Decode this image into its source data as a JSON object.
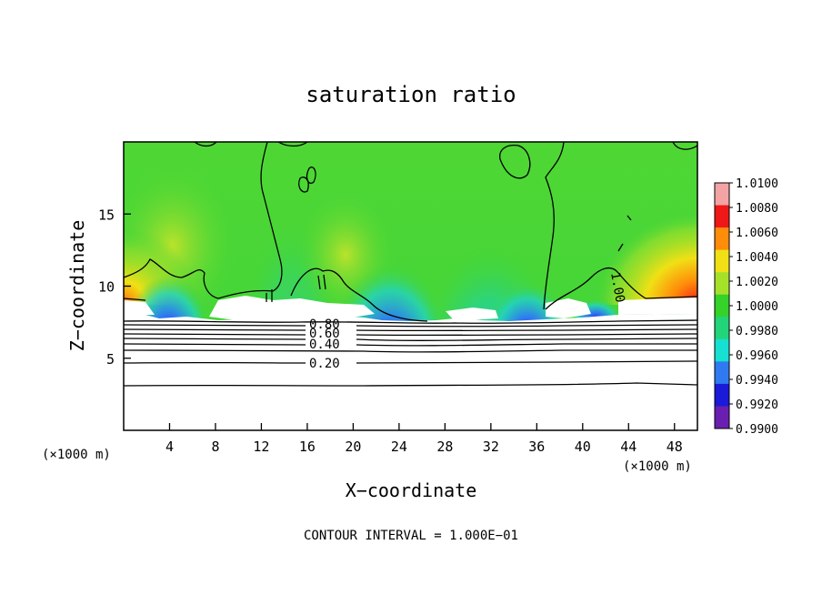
{
  "chart_data": {
    "type": "heatmap",
    "title": "saturation ratio",
    "xlabel": "X−coordinate",
    "ylabel": "Z−coordinate",
    "x_unit": "(×1000 m)",
    "x_unit_right": "(×1000 m)",
    "xlim": [
      0,
      50
    ],
    "ylim": [
      0,
      20
    ],
    "x_ticks": [
      4,
      8,
      12,
      16,
      20,
      24,
      28,
      32,
      36,
      40,
      44,
      48
    ],
    "y_ticks": [
      5,
      10,
      15
    ],
    "colorbar": {
      "min": 0.99,
      "max": 1.01,
      "ticks": [
        "0.9900",
        "0.9920",
        "0.9940",
        "0.9960",
        "0.9980",
        "1.0000",
        "1.0020",
        "1.0040",
        "1.0060",
        "1.0080",
        "1.0100"
      ],
      "colors": [
        "#6a1fb0",
        "#1a1ad8",
        "#2f7af0",
        "#16e0d2",
        "#22d47a",
        "#35d22a",
        "#a6e12a",
        "#f0e015",
        "#ff8c0a",
        "#ef1818",
        "#f3a3a3"
      ]
    },
    "contour_labels": [
      "0.80",
      "0.60",
      "0.40",
      "0.20",
      "1.00"
    ],
    "footer": "CONTOUR INTERVAL = 1.000E−01"
  }
}
